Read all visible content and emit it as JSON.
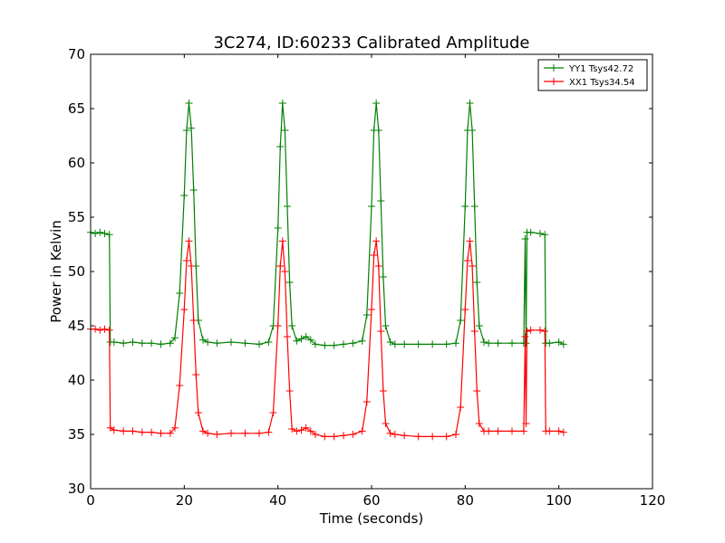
{
  "chart_data": {
    "type": "line",
    "title": "3C274, ID:60233 Calibrated Amplitude",
    "xlabel": "Time (seconds)",
    "ylabel": "Power in Kelvin",
    "xlim": [
      0,
      120
    ],
    "ylim": [
      30,
      70
    ],
    "xticks": [
      "0",
      "20",
      "40",
      "60",
      "80",
      "100",
      "120"
    ],
    "yticks": [
      "30",
      "35",
      "40",
      "45",
      "50",
      "55",
      "60",
      "65",
      "70"
    ],
    "grid": false,
    "legend_position": "top-right",
    "marker": "+",
    "series": [
      {
        "name": "YY1 Tsys42.72",
        "color": "#008000",
        "x": [
          0,
          1,
          2,
          3,
          4,
          4.2,
          5,
          7,
          9,
          11,
          13,
          15,
          17,
          18,
          19,
          20,
          20.5,
          21,
          21.5,
          22,
          22.5,
          23,
          24,
          25,
          27,
          30,
          33,
          36,
          38,
          39,
          40,
          40.5,
          41,
          41.5,
          42,
          42.5,
          43,
          44,
          45,
          46,
          47,
          48,
          50,
          52,
          54,
          56,
          58,
          59,
          60,
          60.5,
          61,
          61.5,
          62,
          62.5,
          63,
          64,
          65,
          67,
          70,
          73,
          76,
          78,
          79,
          80,
          80.5,
          81,
          81.5,
          82,
          82.5,
          83,
          84,
          85,
          87,
          90,
          92.5,
          92.8,
          93,
          93.2,
          94,
          96,
          97,
          97.2,
          98,
          100,
          101
        ],
        "y": [
          53.6,
          53.5,
          53.6,
          53.5,
          53.4,
          43.5,
          43.5,
          43.4,
          43.5,
          43.4,
          43.4,
          43.3,
          43.4,
          43.9,
          48.0,
          57.0,
          63.0,
          65.5,
          63.2,
          57.5,
          50.5,
          45.5,
          43.7,
          43.5,
          43.4,
          43.5,
          43.4,
          43.3,
          43.5,
          45.0,
          54.0,
          61.5,
          65.5,
          63.0,
          56.0,
          49.0,
          45.0,
          43.6,
          43.8,
          44.0,
          43.7,
          43.3,
          43.2,
          43.2,
          43.3,
          43.4,
          43.6,
          46.0,
          56.0,
          63.0,
          65.5,
          63.0,
          56.5,
          49.5,
          45.0,
          43.5,
          43.3,
          43.3,
          43.3,
          43.3,
          43.3,
          43.4,
          45.5,
          56.0,
          63.0,
          65.5,
          63.0,
          56.0,
          49.0,
          45.0,
          43.5,
          43.4,
          43.4,
          43.4,
          43.4,
          53.0,
          43.4,
          53.6,
          53.6,
          53.5,
          53.4,
          43.4,
          43.4,
          43.5,
          43.3
        ]
      },
      {
        "name": "XX1 Tsys34.54",
        "color": "#ff0000",
        "x": [
          0,
          1,
          2,
          3,
          4,
          4.2,
          5,
          7,
          9,
          11,
          13,
          15,
          17,
          18,
          19,
          20,
          20.5,
          21,
          21.5,
          22,
          22.5,
          23,
          24,
          25,
          27,
          30,
          33,
          36,
          38,
          39,
          40,
          40.5,
          41,
          41.5,
          42,
          42.5,
          43,
          44,
          45,
          46,
          47,
          48,
          50,
          52,
          54,
          56,
          58,
          59,
          60,
          60.5,
          61,
          61.5,
          62,
          62.5,
          63,
          64,
          65,
          67,
          70,
          73,
          76,
          78,
          79,
          80,
          80.5,
          81,
          81.5,
          82,
          82.5,
          83,
          84,
          85,
          87,
          90,
          92.5,
          92.8,
          93,
          93.2,
          94,
          96,
          97,
          97.2,
          98,
          100,
          101
        ],
        "y": [
          44.7,
          44.7,
          44.6,
          44.7,
          44.6,
          35.6,
          35.4,
          35.3,
          35.3,
          35.2,
          35.2,
          35.1,
          35.1,
          35.6,
          39.5,
          46.5,
          51.0,
          52.8,
          50.5,
          45.5,
          40.5,
          37.0,
          35.3,
          35.1,
          35.0,
          35.1,
          35.1,
          35.1,
          35.2,
          37.0,
          45.0,
          50.5,
          52.8,
          50.0,
          44.0,
          39.0,
          35.5,
          35.3,
          35.4,
          35.6,
          35.3,
          35.0,
          34.8,
          34.8,
          34.9,
          35.0,
          35.3,
          38.0,
          46.5,
          51.5,
          52.8,
          50.5,
          44.5,
          39.0,
          36.0,
          35.1,
          35.0,
          34.9,
          34.8,
          34.8,
          34.8,
          35.0,
          37.5,
          46.5,
          51.0,
          52.8,
          50.5,
          44.5,
          39.0,
          36.0,
          35.3,
          35.3,
          35.3,
          35.3,
          35.3,
          44.0,
          36.0,
          44.5,
          44.6,
          44.6,
          44.5,
          35.3,
          35.3,
          35.3,
          35.2
        ]
      }
    ]
  }
}
